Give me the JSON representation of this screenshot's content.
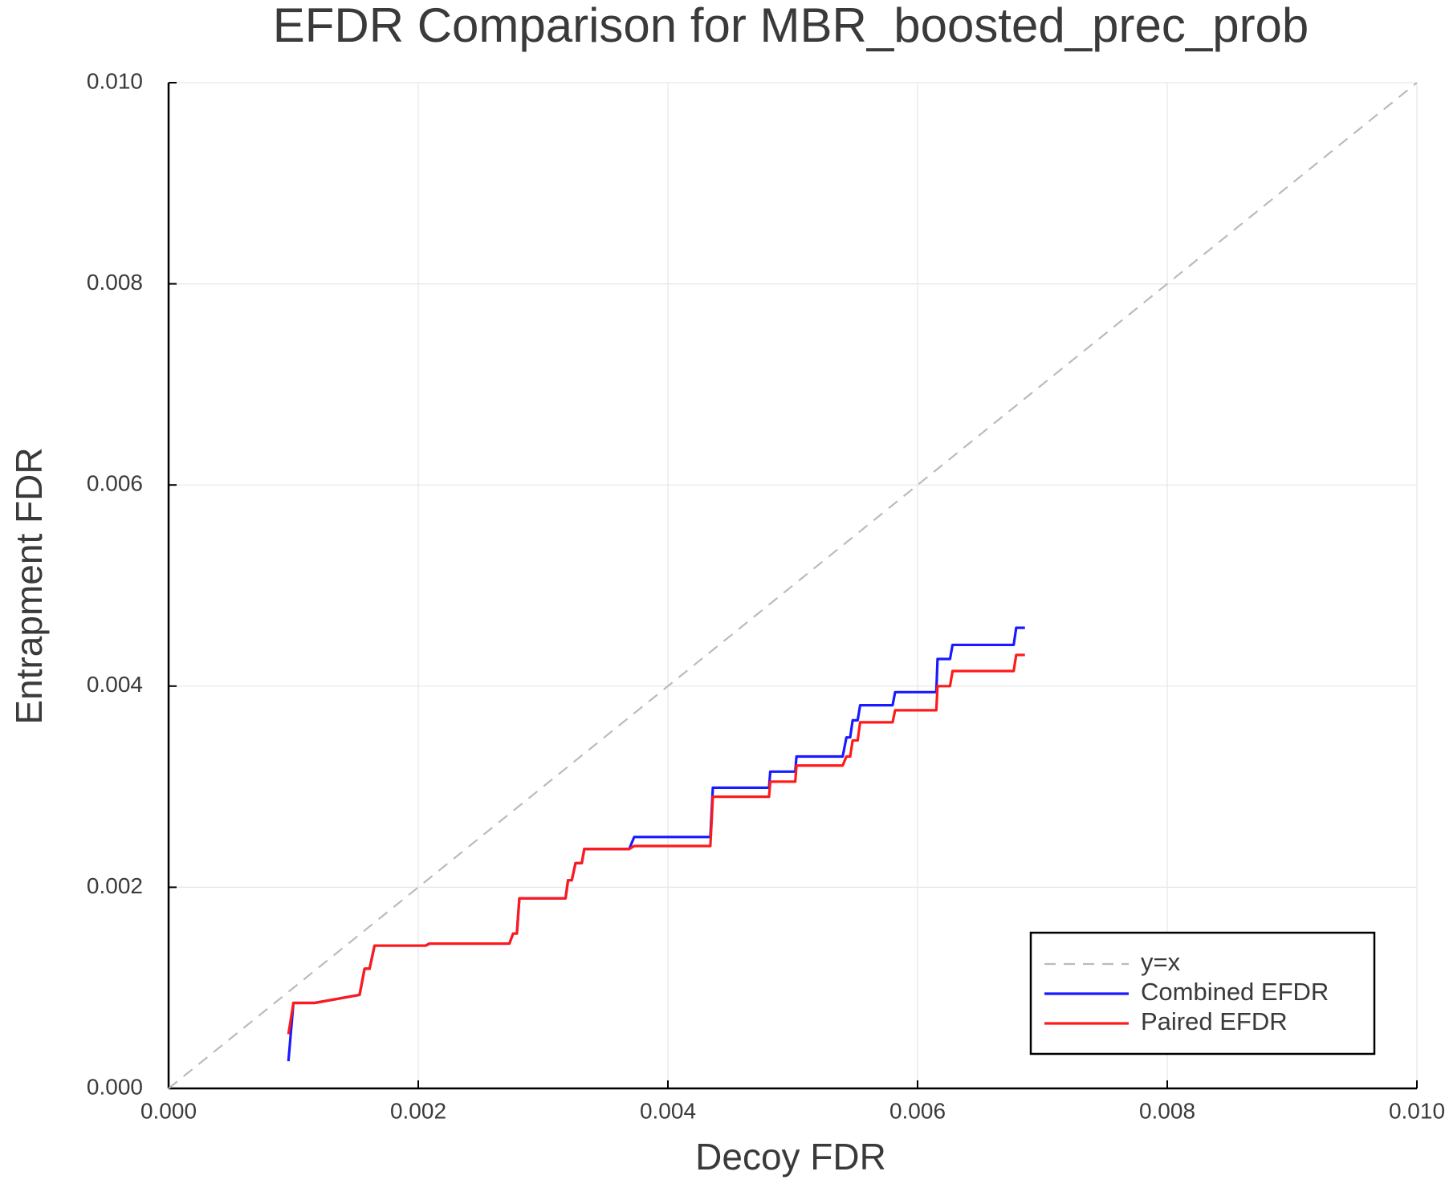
{
  "chart_data": {
    "type": "line",
    "title": "EFDR Comparison for MBR_boosted_prec_prob",
    "x_label": "Decoy FDR",
    "y_label": "Entrapment FDR",
    "xlim": [
      0,
      0.01
    ],
    "ylim": [
      0,
      0.01
    ],
    "xticks": [
      {
        "value": 0,
        "label": "0.000"
      },
      {
        "value": 0.002,
        "label": "0.002"
      },
      {
        "value": 0.004,
        "label": "0.004"
      },
      {
        "value": 0.006,
        "label": "0.006"
      },
      {
        "value": 0.008,
        "label": "0.008"
      },
      {
        "value": 0.01,
        "label": "0.010"
      }
    ],
    "yticks": [
      {
        "value": 0,
        "label": "0.000"
      },
      {
        "value": 0.002,
        "label": "0.002"
      },
      {
        "value": 0.004,
        "label": "0.004"
      },
      {
        "value": 0.006,
        "label": "0.006"
      },
      {
        "value": 0.008,
        "label": "0.008"
      },
      {
        "value": 0.01,
        "label": "0.010"
      }
    ],
    "grid": true,
    "legend": "lower right",
    "series": [
      {
        "name": "y=x",
        "color": "#bbbbbb",
        "style": "dashed",
        "x": [
          0,
          0.01
        ],
        "values": [
          0,
          0.01
        ]
      },
      {
        "name": "Combined EFDR",
        "color": "#1a1aff",
        "style": "solid",
        "x": [
          0.00096,
          0.001,
          0.00117,
          0.00153,
          0.00157,
          0.00161,
          0.00165,
          0.00206,
          0.00209,
          0.00273,
          0.00276,
          0.00279,
          0.00281,
          0.00318,
          0.0032,
          0.00323,
          0.00326,
          0.00331,
          0.00333,
          0.00369,
          0.00373,
          0.00434,
          0.00436,
          0.00481,
          0.00482,
          0.00502,
          0.00503,
          0.0054,
          0.00543,
          0.00546,
          0.00548,
          0.00552,
          0.00554,
          0.0058,
          0.00582,
          0.00615,
          0.00616,
          0.00626,
          0.00628,
          0.00677,
          0.00679,
          0.00686
        ],
        "values": [
          0.00027,
          0.00085,
          0.00085,
          0.00093,
          0.00119,
          0.00119,
          0.00142,
          0.00142,
          0.00144,
          0.00144,
          0.00154,
          0.00154,
          0.00189,
          0.00189,
          0.00207,
          0.00207,
          0.00224,
          0.00224,
          0.00238,
          0.00238,
          0.0025,
          0.0025,
          0.00299,
          0.00299,
          0.00315,
          0.00315,
          0.0033,
          0.0033,
          0.00349,
          0.00349,
          0.00366,
          0.00366,
          0.00381,
          0.00381,
          0.00394,
          0.00394,
          0.00427,
          0.00427,
          0.00441,
          0.00441,
          0.00458,
          0.00458
        ]
      },
      {
        "name": "Paired EFDR",
        "color": "#ff1a1a",
        "style": "solid",
        "x": [
          0.00096,
          0.001,
          0.00117,
          0.00153,
          0.00157,
          0.00161,
          0.00165,
          0.00206,
          0.00209,
          0.00273,
          0.00276,
          0.00279,
          0.00281,
          0.00318,
          0.0032,
          0.00323,
          0.00326,
          0.00331,
          0.00333,
          0.00369,
          0.00373,
          0.00434,
          0.00436,
          0.00481,
          0.00482,
          0.00502,
          0.00503,
          0.0054,
          0.00543,
          0.00546,
          0.00548,
          0.00552,
          0.00554,
          0.0058,
          0.00582,
          0.00615,
          0.00616,
          0.00626,
          0.00628,
          0.00677,
          0.00679,
          0.00686
        ],
        "values": [
          0.00054,
          0.00085,
          0.00085,
          0.00093,
          0.00119,
          0.00119,
          0.00142,
          0.00142,
          0.00144,
          0.00144,
          0.00154,
          0.00154,
          0.00189,
          0.00189,
          0.00207,
          0.00207,
          0.00224,
          0.00224,
          0.00238,
          0.00238,
          0.00241,
          0.00241,
          0.0029,
          0.0029,
          0.00305,
          0.00305,
          0.00321,
          0.00321,
          0.0033,
          0.0033,
          0.00346,
          0.00346,
          0.00364,
          0.00364,
          0.00376,
          0.00376,
          0.004,
          0.004,
          0.00415,
          0.00415,
          0.00431,
          0.00431
        ]
      }
    ]
  }
}
